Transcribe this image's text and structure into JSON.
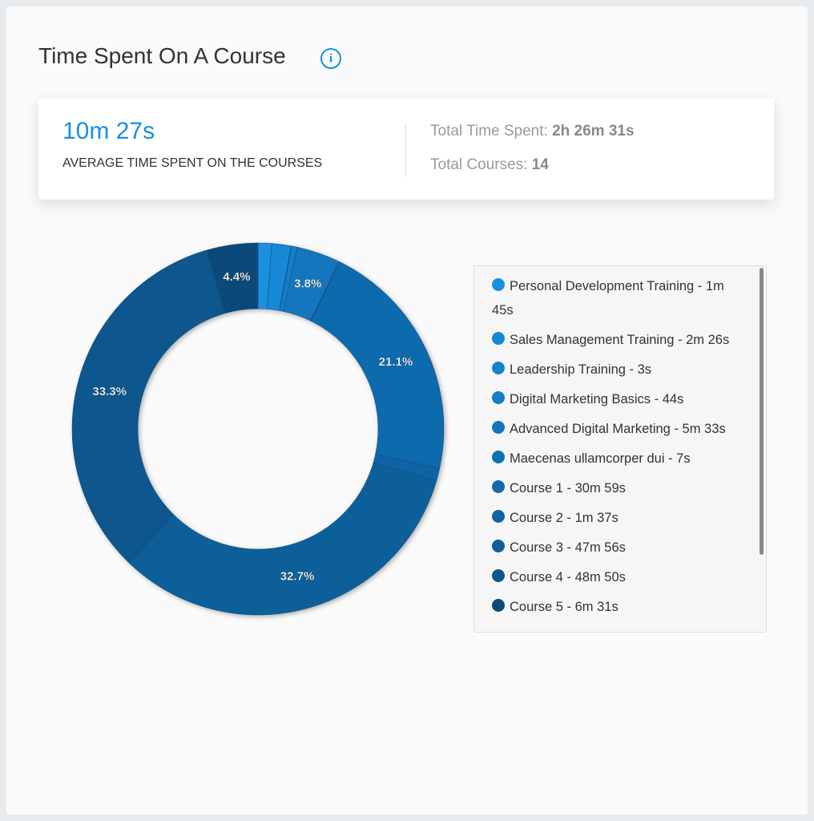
{
  "header": {
    "title": "Time Spent On A Course"
  },
  "summary": {
    "average": "10m 27s",
    "average_label": "AVERAGE TIME SPENT ON THE COURSES",
    "total_time_label": "Total Time Spent:",
    "total_time": "2h 26m 31s",
    "total_courses_label": "Total Courses:",
    "total_courses": "14"
  },
  "chart_data": {
    "type": "pie",
    "donut": true,
    "categories": [
      "Personal Development Training - 1m 45s",
      "Sales Management Training - 2m 26s",
      "Leadership Training - 3s",
      "Digital Marketing Basics - 44s",
      "Advanced Digital Marketing - 5m 33s",
      "Maecenas ullamcorper dui - 7s",
      "Course 1 - 30m 59s",
      "Course 2 - 1m 37s",
      "Course 3 - 47m 56s",
      "Course 4 - 48m 50s",
      "Course 5 - 6m 31s"
    ],
    "values": [
      1.194,
      1.661,
      0.034,
      0.501,
      3.788,
      0.08,
      21.147,
      1.103,
      32.715,
      33.33,
      4.448
    ],
    "value_labels": [
      null,
      null,
      null,
      null,
      "3.8%",
      null,
      "21.1%",
      null,
      "32.7%",
      "33.3%",
      "4.4%"
    ],
    "colors": [
      "#1a8fdf",
      "#1888d6",
      "#1683cf",
      "#157dc7",
      "#1376bd",
      "#1270b5",
      "#106aac",
      "#0f64a3",
      "#0e5e99",
      "#0c578e",
      "#0a4a78"
    ]
  }
}
